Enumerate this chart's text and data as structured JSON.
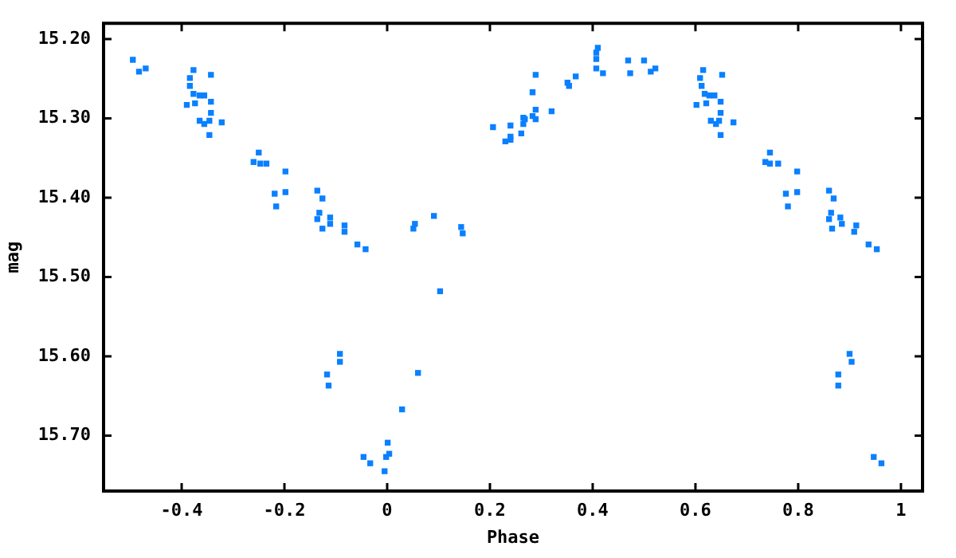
{
  "chart_data": {
    "type": "scatter",
    "xlabel": "Phase",
    "ylabel": "mag",
    "marker": "square",
    "grid": false,
    "legend": false,
    "xlim": [
      -0.552,
      1.042
    ],
    "ylim": [
      15.77,
      15.18
    ],
    "xticks": [
      -0.4,
      -0.2,
      0,
      0.2,
      0.4,
      0.6,
      0.8,
      1
    ],
    "yticks": [
      {
        "value": 15.2,
        "label": "15.20"
      },
      {
        "value": 15.3,
        "label": "15.30"
      },
      {
        "value": 15.4,
        "label": "15.40"
      },
      {
        "value": 15.5,
        "label": "15.50"
      },
      {
        "value": 15.6,
        "label": "15.60"
      },
      {
        "value": 15.7,
        "label": "15.70"
      }
    ],
    "series": [
      {
        "color": "#0a80ff",
        "x": [
          -0.495,
          -0.483,
          -0.47,
          -0.377,
          -0.384,
          -0.384,
          -0.377,
          -0.39,
          -0.374,
          -0.365,
          -0.356,
          -0.343,
          -0.343,
          -0.343,
          -0.365,
          -0.356,
          -0.346,
          -0.322,
          -0.346,
          -0.25,
          -0.26,
          -0.247,
          -0.235,
          -0.198,
          -0.219,
          -0.198,
          -0.216,
          -0.136,
          -0.126,
          -0.132,
          -0.136,
          -0.126,
          -0.111,
          -0.111,
          -0.083,
          -0.083,
          -0.058,
          -0.042,
          -0.092,
          -0.092,
          -0.117,
          -0.114,
          -0.046,
          -0.033,
          -0.005,
          -0.002,
          0.001,
          0.004,
          0.029,
          0.06,
          0.051,
          0.054,
          0.091,
          0.103,
          0.144,
          0.147,
          0.206,
          0.23,
          0.24,
          0.24,
          0.24,
          0.261,
          0.265,
          0.265,
          0.268,
          0.283,
          0.289,
          0.289,
          0.283,
          0.289,
          0.32,
          0.351,
          0.354,
          0.367,
          0.407,
          0.407,
          0.407,
          0.41,
          0.42,
          0.469,
          0.473,
          0.5,
          0.513,
          0.522,
          0.615,
          0.609,
          0.612,
          0.618,
          0.602,
          0.621,
          0.627,
          0.637,
          0.652,
          0.649,
          0.649,
          0.63,
          0.64,
          0.646,
          0.674,
          0.649,
          0.745,
          0.736,
          0.745,
          0.761,
          0.798,
          0.776,
          0.798,
          0.78,
          0.86,
          0.869,
          0.864,
          0.86,
          0.866,
          0.882,
          0.885,
          0.913,
          0.909,
          0.937,
          0.953,
          0.9,
          0.904,
          0.878,
          0.878,
          0.947,
          0.962
        ],
        "values": [
          15.226,
          15.241,
          15.237,
          15.239,
          15.249,
          15.259,
          15.269,
          15.283,
          15.281,
          15.271,
          15.271,
          15.245,
          15.279,
          15.293,
          15.303,
          15.307,
          15.303,
          15.305,
          15.321,
          15.343,
          15.355,
          15.357,
          15.357,
          15.367,
          15.395,
          15.393,
          15.411,
          15.391,
          15.401,
          15.419,
          15.427,
          15.439,
          15.425,
          15.433,
          15.435,
          15.443,
          15.459,
          15.465,
          15.597,
          15.607,
          15.623,
          15.637,
          15.727,
          15.735,
          15.745,
          15.727,
          15.709,
          15.723,
          15.667,
          15.621,
          15.439,
          15.433,
          15.423,
          15.518,
          15.437,
          15.445,
          15.311,
          15.329,
          15.327,
          15.323,
          15.309,
          15.319,
          15.307,
          15.299,
          15.301,
          15.297,
          15.301,
          15.289,
          15.267,
          15.245,
          15.291,
          15.255,
          15.259,
          15.247,
          15.237,
          15.225,
          15.217,
          15.211,
          15.243,
          15.227,
          15.243,
          15.227,
          15.241,
          15.237,
          15.239,
          15.249,
          15.259,
          15.269,
          15.283,
          15.281,
          15.271,
          15.271,
          15.245,
          15.279,
          15.293,
          15.303,
          15.307,
          15.303,
          15.305,
          15.321,
          15.343,
          15.355,
          15.357,
          15.357,
          15.367,
          15.395,
          15.393,
          15.411,
          15.391,
          15.401,
          15.419,
          15.427,
          15.439,
          15.425,
          15.433,
          15.435,
          15.443,
          15.459,
          15.465,
          15.597,
          15.607,
          15.623,
          15.637,
          15.727,
          15.735
        ]
      }
    ]
  }
}
